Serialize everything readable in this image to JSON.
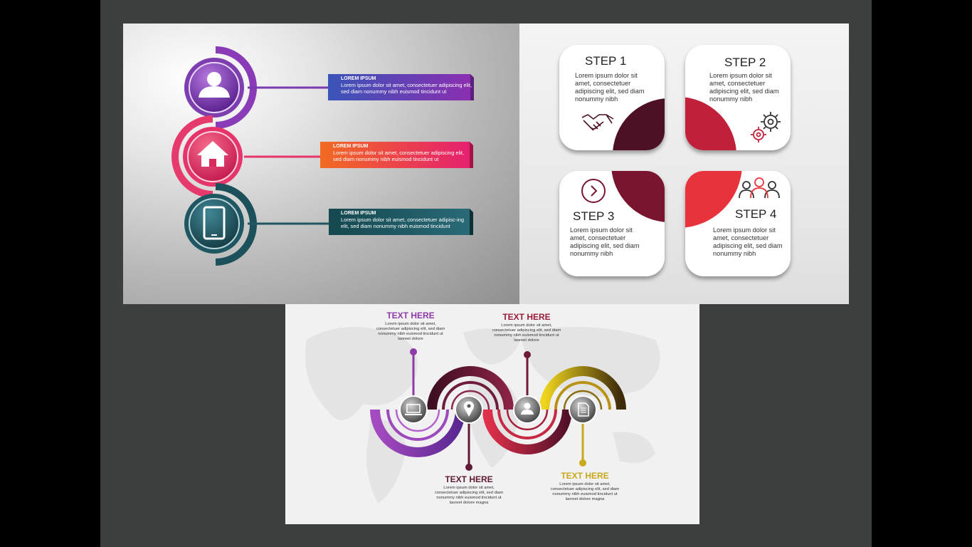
{
  "panel_a": {
    "items": [
      {
        "icon": "user-icon",
        "title": "LOREM IPSUM",
        "body": "Lorem ipsum dolor sit amet, consectetuer adipiscing elit, sed diam nonummy nibh euismod tincidunt ut",
        "color": "#7b3ab8"
      },
      {
        "icon": "home-icon",
        "title": "LOREM IPSUM",
        "body": "Lorem ipsum dolor sit amet, consectetuer adipiscing elit, sed diam nonummy nibh euismod tincidunt ut",
        "color": "#e8336b"
      },
      {
        "icon": "phone-icon",
        "title": "LOREM IPSUM",
        "body": "Lorem ipsum dolor sit amet, consectetuer adipisc-ing elit, sed diam nonummy nibh euismod tincidunt",
        "color": "#1e5661"
      }
    ]
  },
  "panel_b": {
    "steps": [
      {
        "title": "STEP 1",
        "body": "Lorem ipsum dolor sit amet, consectetuer adipiscing elit, sed diam nonummy nibh",
        "icon": "handshake-icon",
        "color": "#4d1126"
      },
      {
        "title": "STEP 2",
        "body": "Lorem ipsum dolor sit amet, consectetuer adipiscing elit, sed diam nonummy nibh",
        "icon": "gears-icon",
        "color": "#c2203a"
      },
      {
        "title": "STEP 3",
        "body": "Lorem ipsum dolor sit amet, consectetuer adipiscing elit, sed diam nonummy nibh",
        "icon": "chevron-right-icon",
        "color": "#7a1530"
      },
      {
        "title": "STEP 4",
        "body": "Lorem ipsum dolor sit amet, consectetuer adipiscing elit, sed diam nonummy nibh",
        "icon": "people-icon",
        "color": "#e8333c"
      }
    ]
  },
  "panel_c": {
    "nodes": [
      {
        "title": "TEXT HERE",
        "body": "Lorem ipsum dolor sit amet, consectetuer adipiscing elit, sed diam nonummy nibh euismod tincidunt ut laoreet dolore",
        "icon": "laptop-icon",
        "color": "#8e3aa8"
      },
      {
        "title": "TEXT HERE",
        "body": "Lorem ipsum dolor sit amet, consectetuer adipiscing elit, sed diam nonummy nibh euismod tincidunt ut laoreet dolore magna",
        "icon": "map-pin-icon",
        "color": "#5e1a37"
      },
      {
        "title": "TEXT HERE",
        "body": "Lorem ipsum dolor sit amet, consectetuer adipiscing elit, sed diam nonummy nibh euismod tincidunt ut laoreet dolore",
        "icon": "user-icon",
        "color": "#9b1c3a"
      },
      {
        "title": "TEXT HERE",
        "body": "Lorem ipsum dolor sit amet, consectetuer adipiscing elit, sed diam nonummy nibh euismod tincidunt ut laoreet dolore magna",
        "icon": "document-icon",
        "color": "#c9a81a"
      }
    ]
  }
}
